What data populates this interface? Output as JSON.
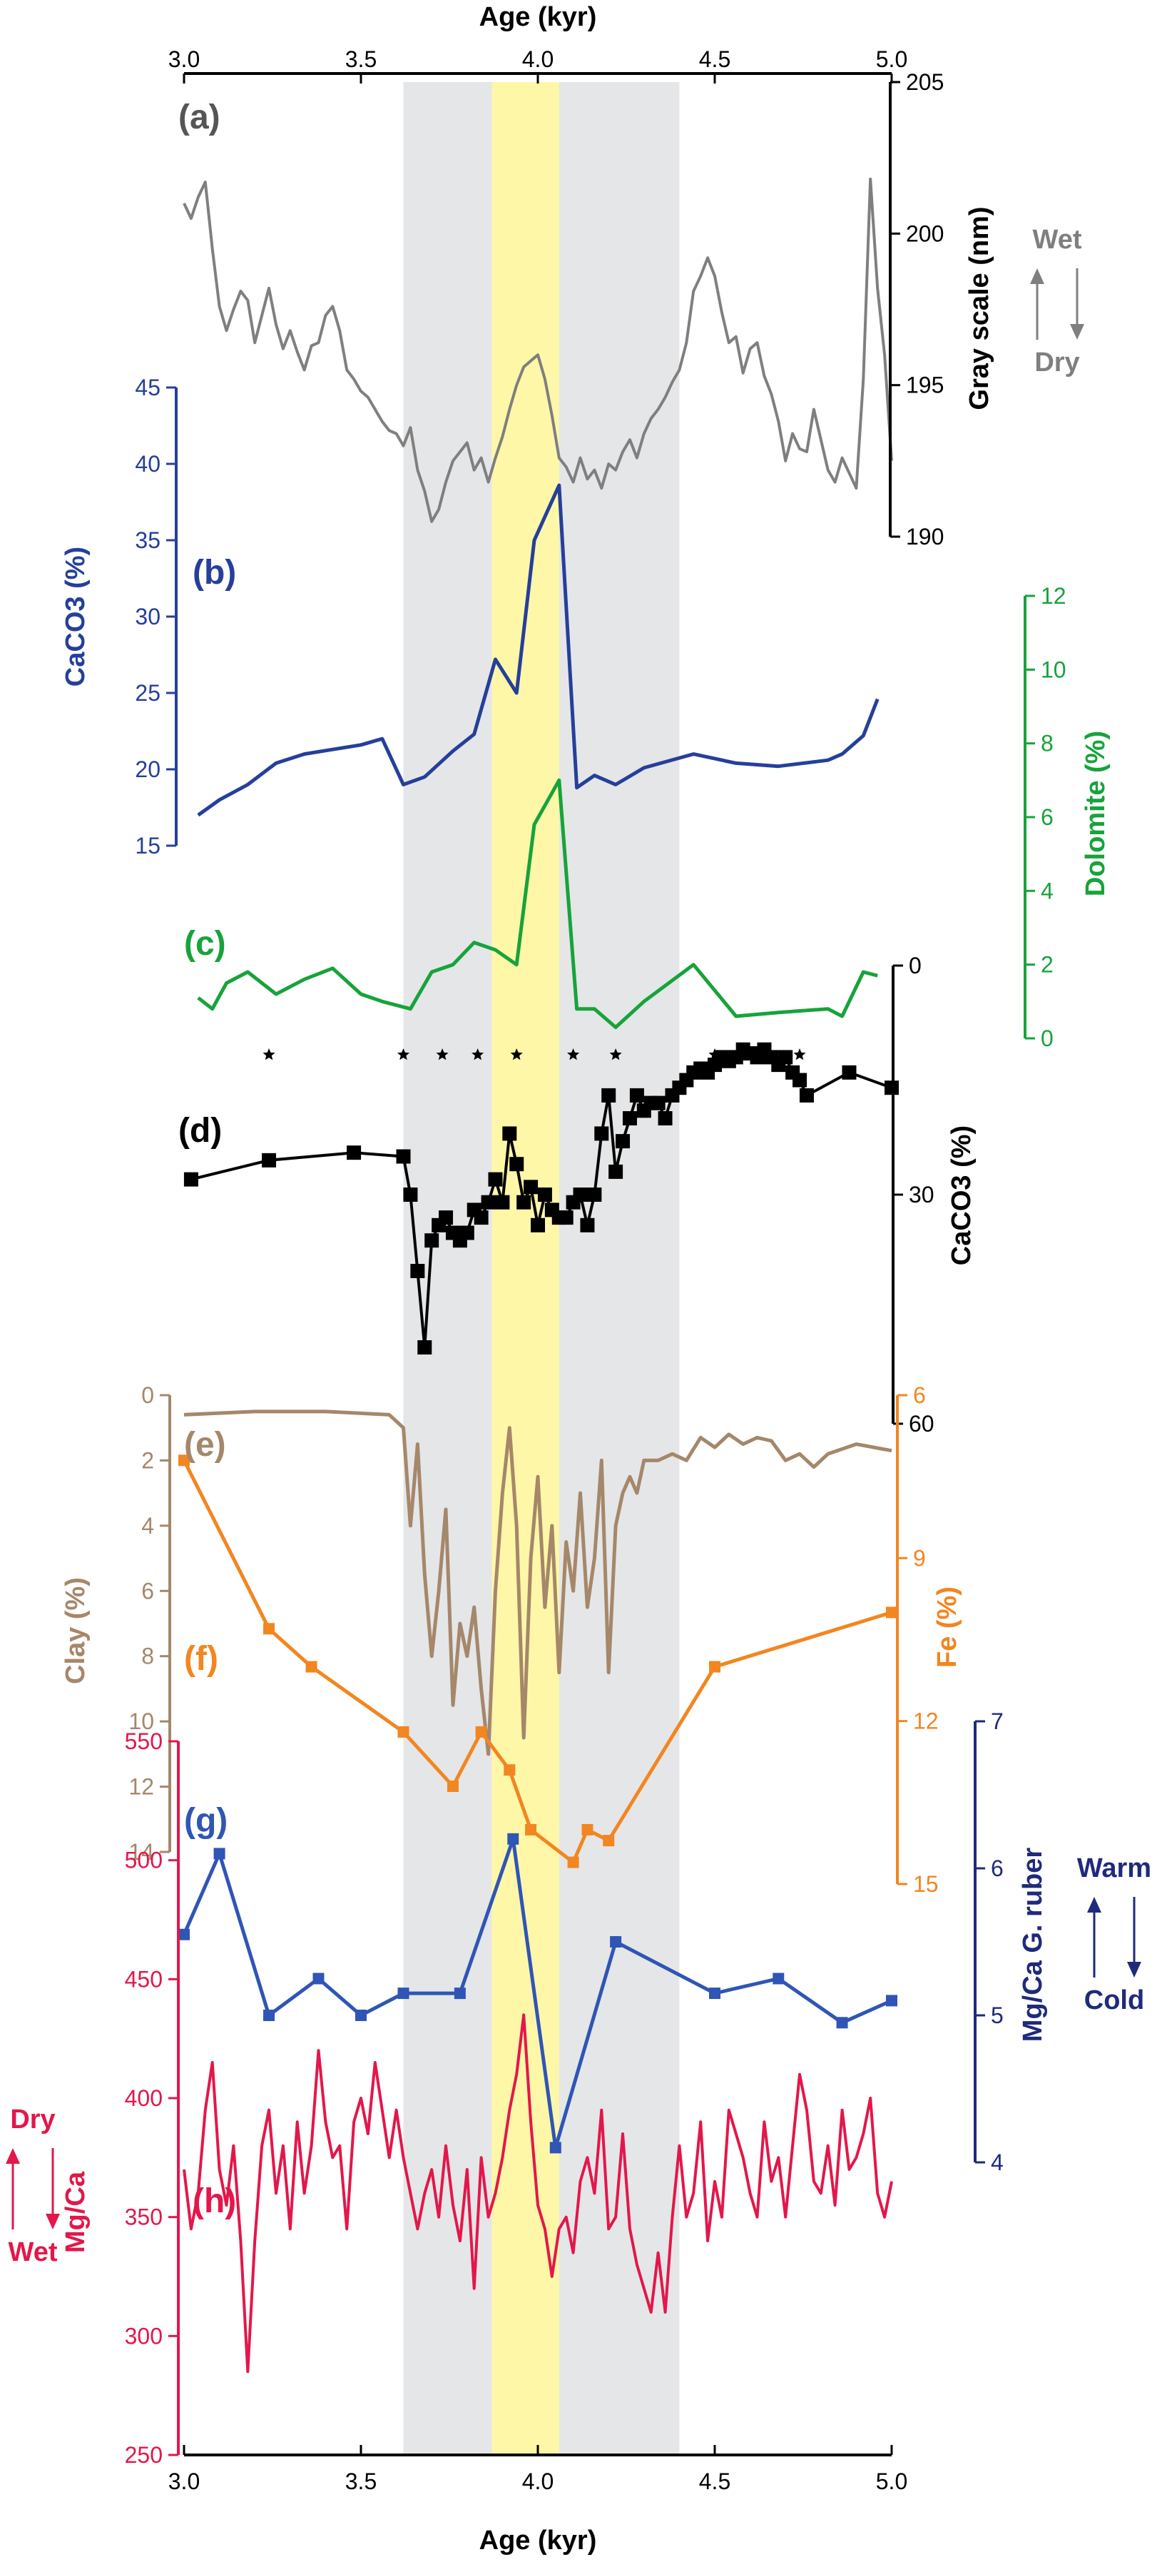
{
  "colors": {
    "gray_scale": "#7f7f7f",
    "caco3_b": "#253f9a",
    "dolomite": "#17a33b",
    "caco3_d": "#000000",
    "clay": "#a5876a",
    "fe": "#f28620",
    "mgca_ruber": "#2f55b5",
    "mgca_ruber_axis": "#1f2a7a",
    "mgca_h": "#e3174a",
    "gray_band": "#e5e6e8",
    "yellow_band": "#fff7a8"
  },
  "chart_data": {
    "type": "line",
    "title": "",
    "xlabel_top": "Age (kyr)",
    "xlabel_bottom": "Age (kyr)",
    "xlim": [
      3.0,
      5.0
    ],
    "xticks": [
      "3.0",
      "3.5",
      "4.0",
      "4.5",
      "5.0"
    ],
    "shaded_intervals": [
      {
        "name": "gray",
        "range": [
          3.62,
          4.4
        ]
      },
      {
        "name": "yellow",
        "range": [
          3.87,
          4.06
        ]
      }
    ],
    "star_markers": [
      3.24,
      3.62,
      3.73,
      3.83,
      3.94,
      4.1,
      4.22,
      4.5,
      4.74
    ],
    "panels": [
      {
        "id": "a",
        "label": "(a)",
        "name": "Gray scale (nm)",
        "axis_side": "right",
        "axis_label": "Gray scale\n(nm)",
        "ylim": [
          190,
          205
        ],
        "yticks": [
          "190",
          "195",
          "200",
          "205"
        ],
        "annotation": {
          "up": "Wet",
          "down": "Dry"
        },
        "series": {
          "x": [
            3.0,
            3.02,
            3.04,
            3.06,
            3.08,
            3.1,
            3.12,
            3.14,
            3.16,
            3.18,
            3.2,
            3.22,
            3.24,
            3.26,
            3.28,
            3.3,
            3.32,
            3.34,
            3.36,
            3.38,
            3.4,
            3.42,
            3.44,
            3.46,
            3.48,
            3.5,
            3.52,
            3.54,
            3.56,
            3.58,
            3.6,
            3.62,
            3.64,
            3.66,
            3.68,
            3.7,
            3.72,
            3.74,
            3.76,
            3.78,
            3.8,
            3.82,
            3.84,
            3.86,
            3.88,
            3.9,
            3.92,
            3.94,
            3.96,
            3.98,
            4.0,
            4.02,
            4.04,
            4.06,
            4.08,
            4.1,
            4.12,
            4.14,
            4.16,
            4.18,
            4.2,
            4.22,
            4.24,
            4.26,
            4.28,
            4.3,
            4.32,
            4.34,
            4.36,
            4.38,
            4.4,
            4.42,
            4.44,
            4.46,
            4.48,
            4.5,
            4.52,
            4.54,
            4.56,
            4.58,
            4.6,
            4.62,
            4.64,
            4.66,
            4.68,
            4.7,
            4.72,
            4.74,
            4.76,
            4.78,
            4.8,
            4.82,
            4.84,
            4.86,
            4.88,
            4.9,
            4.92,
            4.94,
            4.96,
            4.98,
            5.0
          ],
          "y": [
            201,
            200.5,
            201.2,
            201.7,
            199.5,
            197.6,
            196.8,
            197.5,
            198.1,
            197.8,
            196.4,
            197.3,
            198.2,
            197.0,
            196.2,
            196.8,
            196.1,
            195.5,
            196.3,
            196.4,
            197.3,
            197.6,
            196.8,
            195.5,
            195.2,
            194.8,
            194.6,
            194.2,
            193.8,
            193.5,
            193.4,
            193.0,
            193.6,
            192.2,
            191.5,
            190.5,
            190.9,
            191.8,
            192.5,
            192.8,
            193.1,
            192.2,
            192.6,
            191.8,
            192.6,
            193.3,
            194.2,
            195.0,
            195.6,
            195.8,
            196.0,
            195.2,
            194.0,
            192.6,
            192.3,
            191.8,
            192.6,
            191.9,
            192.2,
            191.6,
            192.4,
            192.2,
            192.8,
            193.2,
            192.6,
            193.4,
            193.9,
            194.2,
            194.6,
            195.1,
            195.5,
            196.4,
            198.1,
            198.6,
            199.2,
            198.6,
            197.4,
            196.4,
            196.6,
            195.4,
            196.2,
            196.4,
            195.3,
            194.7,
            193.8,
            192.5,
            193.4,
            192.9,
            192.8,
            194.2,
            193.2,
            192.2,
            191.8,
            192.6,
            192.1,
            191.6,
            195.2,
            201.8,
            198.2,
            196.0,
            192.5
          ]
        }
      },
      {
        "id": "b",
        "label": "(b)",
        "name": "CaCO3 (%)",
        "axis_side": "left",
        "axis_label": "CaCO3 (%)",
        "ylim": [
          15,
          45
        ],
        "yticks": [
          "15",
          "20",
          "25",
          "30",
          "35",
          "40",
          "45"
        ],
        "series": {
          "x": [
            3.04,
            3.1,
            3.18,
            3.26,
            3.34,
            3.42,
            3.5,
            3.56,
            3.62,
            3.68,
            3.76,
            3.82,
            3.88,
            3.94,
            3.99,
            4.06,
            4.11,
            4.16,
            4.22,
            4.3,
            4.44,
            4.56,
            4.68,
            4.82,
            4.86,
            4.92,
            4.96
          ],
          "y": [
            17.0,
            18.0,
            19.0,
            20.4,
            21.0,
            21.3,
            21.6,
            22.0,
            19.0,
            19.5,
            21.2,
            22.3,
            27.2,
            25.0,
            35.0,
            38.6,
            18.8,
            19.6,
            19.0,
            20.1,
            21.0,
            20.4,
            20.2,
            20.6,
            21.0,
            22.2,
            24.6
          ]
        }
      },
      {
        "id": "c",
        "label": "(c)",
        "name": "Dolomite (%)",
        "axis_side": "right",
        "axis_label": "Dolomite (%)",
        "ylim": [
          0,
          12
        ],
        "yticks": [
          "0",
          "2",
          "4",
          "6",
          "8",
          "10",
          "12"
        ],
        "series": {
          "x": [
            3.04,
            3.08,
            3.12,
            3.18,
            3.26,
            3.34,
            3.42,
            3.5,
            3.56,
            3.64,
            3.7,
            3.76,
            3.82,
            3.88,
            3.94,
            3.99,
            4.06,
            4.11,
            4.16,
            4.22,
            4.3,
            4.44,
            4.56,
            4.68,
            4.82,
            4.86,
            4.92,
            4.96
          ],
          "y": [
            1.1,
            0.8,
            1.5,
            1.8,
            1.2,
            1.6,
            1.9,
            1.2,
            1.0,
            0.8,
            1.8,
            2.0,
            2.6,
            2.4,
            2.0,
            5.8,
            7.0,
            0.8,
            0.8,
            0.3,
            1.0,
            2.0,
            0.6,
            0.7,
            0.8,
            0.6,
            1.8,
            1.7
          ]
        }
      },
      {
        "id": "d",
        "label": "(d)",
        "name": "CaCO3 (%)",
        "axis_side": "right",
        "axis_label": "CaCO3 (%)",
        "ylim": [
          0,
          60
        ],
        "inverted": true,
        "yticks": [
          "0",
          "30",
          "60"
        ],
        "series": {
          "x": [
            3.02,
            3.24,
            3.48,
            3.62,
            3.64,
            3.66,
            3.68,
            3.7,
            3.72,
            3.74,
            3.76,
            3.78,
            3.8,
            3.82,
            3.84,
            3.86,
            3.88,
            3.9,
            3.92,
            3.94,
            3.96,
            3.98,
            4.0,
            4.02,
            4.04,
            4.06,
            4.08,
            4.1,
            4.12,
            4.14,
            4.16,
            4.18,
            4.2,
            4.22,
            4.24,
            4.26,
            4.28,
            4.3,
            4.32,
            4.34,
            4.36,
            4.38,
            4.4,
            4.42,
            4.44,
            4.46,
            4.48,
            4.5,
            4.52,
            4.54,
            4.56,
            4.58,
            4.6,
            4.62,
            4.64,
            4.66,
            4.68,
            4.7,
            4.72,
            4.74,
            4.76,
            4.88,
            5.0
          ],
          "y": [
            28,
            25.5,
            24.5,
            25,
            30,
            40,
            50,
            36,
            34,
            33,
            35,
            36,
            35,
            32,
            33,
            31,
            28,
            31,
            22,
            26,
            31,
            29,
            34,
            30,
            32,
            33,
            33,
            31,
            30,
            34,
            30,
            22,
            17,
            27,
            23,
            20,
            17,
            19,
            18,
            18,
            20,
            17,
            16,
            15,
            14,
            13.5,
            14,
            13,
            12,
            12.5,
            12,
            11,
            11.5,
            12,
            11,
            12,
            13,
            12,
            14,
            15,
            17,
            14,
            16
          ]
        }
      },
      {
        "id": "e",
        "label": "(e)",
        "name": "Clay (%)",
        "axis_side": "left",
        "axis_label": "Clay (%)",
        "ylim": [
          0,
          14
        ],
        "inverted": true,
        "yticks": [
          "0",
          "2",
          "4",
          "6",
          "8",
          "10",
          "12",
          "14"
        ],
        "series": {
          "x": [
            3.0,
            3.2,
            3.4,
            3.58,
            3.62,
            3.64,
            3.66,
            3.68,
            3.7,
            3.72,
            3.74,
            3.76,
            3.78,
            3.8,
            3.82,
            3.84,
            3.86,
            3.88,
            3.9,
            3.92,
            3.94,
            3.96,
            3.98,
            4.0,
            4.02,
            4.04,
            4.06,
            4.08,
            4.1,
            4.12,
            4.14,
            4.16,
            4.18,
            4.2,
            4.22,
            4.24,
            4.26,
            4.28,
            4.3,
            4.34,
            4.38,
            4.42,
            4.46,
            4.5,
            4.54,
            4.58,
            4.62,
            4.66,
            4.7,
            4.74,
            4.78,
            4.82,
            4.9,
            5.0
          ],
          "y": [
            0.6,
            0.5,
            0.5,
            0.6,
            1.0,
            4.0,
            1.5,
            5.5,
            8.0,
            6.0,
            3.5,
            9.5,
            7.0,
            8.0,
            6.5,
            9.0,
            11.0,
            6.0,
            3.0,
            1.0,
            4.0,
            10.5,
            5.0,
            2.5,
            6.5,
            4.0,
            8.5,
            4.5,
            6.0,
            3.0,
            6.5,
            5.0,
            2.0,
            8.5,
            4.0,
            3.0,
            2.5,
            3.0,
            2.0,
            2.0,
            1.8,
            2.0,
            1.3,
            1.6,
            1.2,
            1.5,
            1.3,
            1.4,
            2.0,
            1.8,
            2.2,
            1.8,
            1.5,
            1.7
          ]
        }
      },
      {
        "id": "f",
        "label": "(f)",
        "name": "Fe (%)",
        "axis_side": "right",
        "axis_label": "Fe (%)",
        "ylim": [
          6,
          15
        ],
        "inverted": true,
        "yticks": [
          "6",
          "9",
          "12",
          "15"
        ],
        "series": {
          "x": [
            3.0,
            3.24,
            3.36,
            3.62,
            3.76,
            3.84,
            3.92,
            3.98,
            4.1,
            4.14,
            4.2,
            4.5,
            5.0
          ],
          "y": [
            7.2,
            10.3,
            11.0,
            12.2,
            13.2,
            12.2,
            12.9,
            14.0,
            14.6,
            14.0,
            14.2,
            11.0,
            10.0
          ]
        }
      },
      {
        "id": "g",
        "label": "(g)",
        "name": "Mg/Ca G. ruber",
        "axis_side": "right",
        "axis_label": "Mg/Ca\nG. ruber",
        "ylim": [
          4,
          7
        ],
        "yticks": [
          "4",
          "5",
          "6",
          "7"
        ],
        "annotation": {
          "up": "Warm",
          "down": "Cold"
        },
        "series": {
          "x": [
            3.0,
            3.1,
            3.24,
            3.38,
            3.5,
            3.62,
            3.78,
            3.93,
            4.05,
            4.22,
            4.5,
            4.68,
            4.86,
            5.0
          ],
          "y": [
            5.55,
            6.1,
            5.0,
            5.25,
            5.0,
            5.15,
            5.15,
            6.2,
            4.1,
            5.5,
            5.15,
            5.25,
            4.95,
            5.1
          ]
        }
      },
      {
        "id": "h",
        "label": "(h)",
        "name": "Mg/Ca",
        "axis_side": "left",
        "axis_label": "Mg/Ca",
        "ylim": [
          250,
          550
        ],
        "yticks": [
          "250",
          "300",
          "350",
          "400",
          "450",
          "500",
          "550"
        ],
        "annotation": {
          "up": "Dry",
          "down": "Wet"
        },
        "series": {
          "x": [
            3.0,
            3.02,
            3.04,
            3.06,
            3.08,
            3.1,
            3.12,
            3.14,
            3.16,
            3.18,
            3.2,
            3.22,
            3.24,
            3.26,
            3.28,
            3.3,
            3.32,
            3.34,
            3.36,
            3.38,
            3.4,
            3.42,
            3.44,
            3.46,
            3.48,
            3.5,
            3.52,
            3.54,
            3.56,
            3.58,
            3.6,
            3.62,
            3.64,
            3.66,
            3.68,
            3.7,
            3.72,
            3.74,
            3.76,
            3.78,
            3.8,
            3.82,
            3.84,
            3.86,
            3.88,
            3.9,
            3.92,
            3.94,
            3.96,
            3.98,
            4.0,
            4.02,
            4.04,
            4.06,
            4.08,
            4.1,
            4.12,
            4.14,
            4.16,
            4.18,
            4.2,
            4.22,
            4.24,
            4.26,
            4.28,
            4.3,
            4.32,
            4.34,
            4.36,
            4.38,
            4.4,
            4.42,
            4.44,
            4.46,
            4.48,
            4.5,
            4.52,
            4.54,
            4.56,
            4.58,
            4.6,
            4.62,
            4.64,
            4.66,
            4.68,
            4.7,
            4.72,
            4.74,
            4.76,
            4.78,
            4.8,
            4.82,
            4.84,
            4.86,
            4.88,
            4.9,
            4.92,
            4.94,
            4.96,
            4.98,
            5.0
          ],
          "y": [
            370,
            345,
            360,
            395,
            415,
            370,
            355,
            380,
            340,
            285,
            340,
            380,
            395,
            360,
            380,
            345,
            390,
            360,
            380,
            420,
            390,
            375,
            380,
            345,
            390,
            400,
            385,
            415,
            395,
            375,
            395,
            375,
            360,
            345,
            360,
            370,
            350,
            380,
            355,
            340,
            370,
            320,
            375,
            350,
            360,
            375,
            395,
            410,
            435,
            390,
            355,
            345,
            325,
            345,
            350,
            335,
            365,
            375,
            360,
            395,
            345,
            350,
            385,
            345,
            330,
            320,
            310,
            335,
            310,
            350,
            380,
            350,
            360,
            390,
            340,
            365,
            350,
            395,
            385,
            375,
            360,
            350,
            390,
            365,
            375,
            350,
            380,
            410,
            395,
            365,
            360,
            380,
            355,
            395,
            370,
            375,
            385,
            400,
            360,
            350,
            365
          ]
        }
      }
    ]
  }
}
